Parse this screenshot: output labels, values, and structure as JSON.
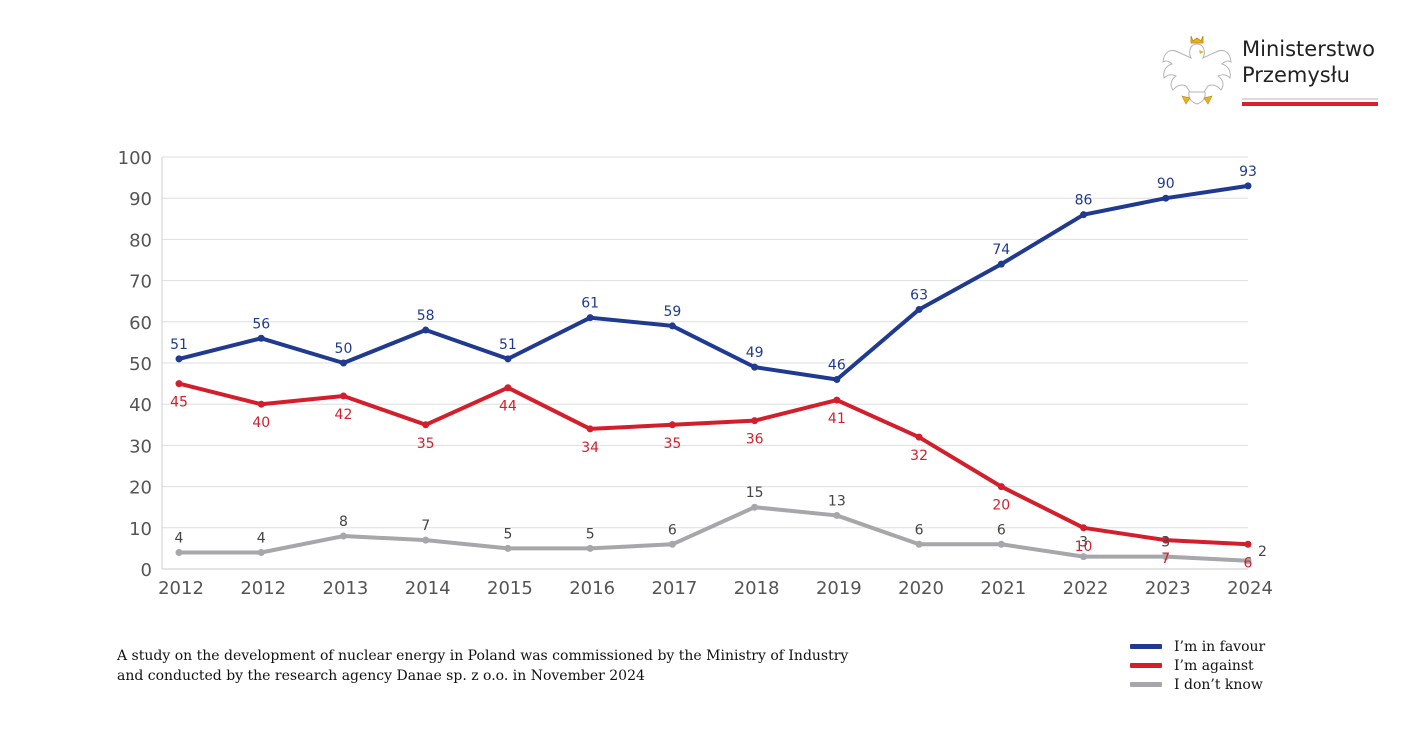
{
  "logo": {
    "line1": "Ministerstwo",
    "line2": "Przemysłu",
    "icon": "polish-eagle-emblem-icon"
  },
  "footnote": {
    "line1": "A study on the development of nuclear energy in Poland was commissioned by the Ministry of Industry",
    "line2": "and conducted by the research agency Danae sp. z o.o. in November 2024"
  },
  "legend": [
    {
      "label": "I’m in favour",
      "color": "#1f3a8f"
    },
    {
      "label": "I’m against",
      "color": "#d21f2b"
    },
    {
      "label": "I don’t know",
      "color": "#a6a6ab"
    }
  ],
  "chart_data": {
    "type": "line",
    "categories": [
      "2012",
      "2012",
      "2013",
      "2014",
      "2015",
      "2016",
      "2017",
      "2018",
      "2019",
      "2020",
      "2021",
      "2022",
      "2023",
      "2024"
    ],
    "ylim": [
      0,
      100
    ],
    "yticks": [
      0,
      10,
      20,
      30,
      40,
      50,
      60,
      70,
      80,
      90,
      100
    ],
    "grid": true,
    "legend_position": "bottom-right",
    "series": [
      {
        "name": "I’m in favour",
        "color": "#1f3a8f",
        "label_position": "above",
        "values": [
          51,
          56,
          50,
          58,
          51,
          61,
          59,
          49,
          46,
          63,
          74,
          86,
          90,
          93
        ]
      },
      {
        "name": "I’m against",
        "color": "#d21f2b",
        "label_position": "below",
        "values": [
          45,
          40,
          42,
          35,
          44,
          34,
          35,
          36,
          41,
          32,
          20,
          10,
          7,
          6
        ]
      },
      {
        "name": "I don’t know",
        "color": "#a6a6ab",
        "label_color": "#444444",
        "label_position": "above",
        "values": [
          4,
          4,
          8,
          7,
          5,
          5,
          6,
          15,
          13,
          6,
          6,
          3,
          3,
          2
        ]
      }
    ]
  }
}
